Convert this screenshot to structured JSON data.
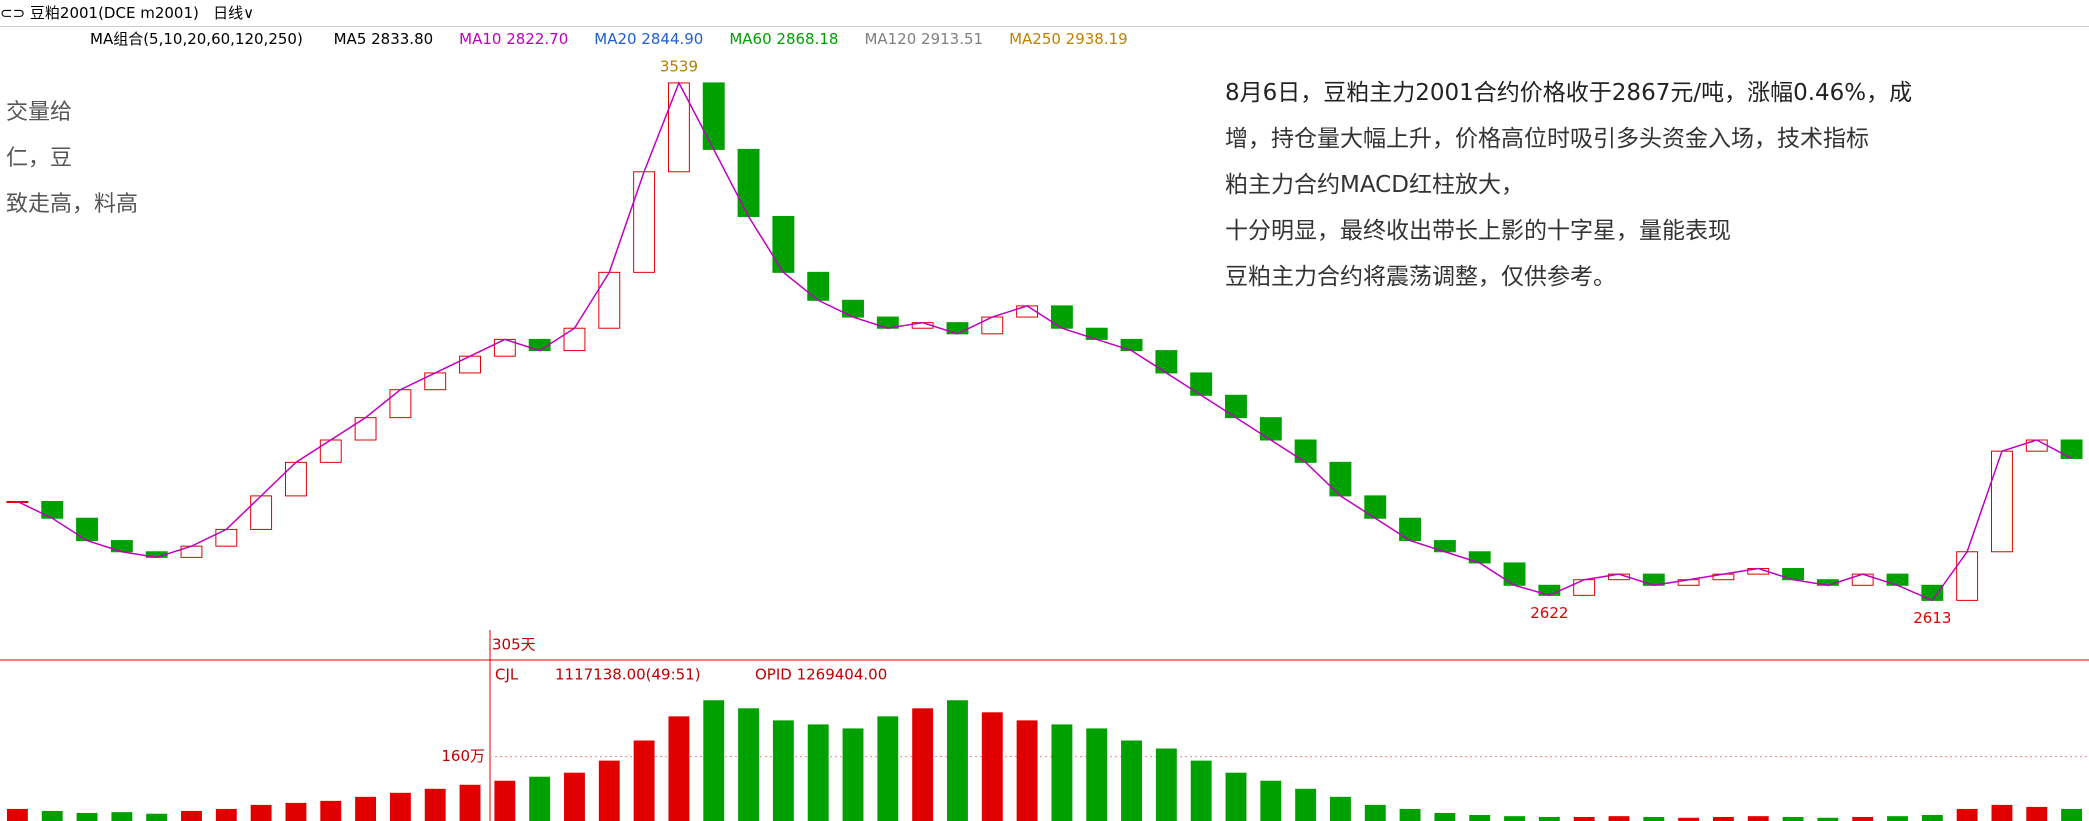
{
  "toolbar": {
    "symbol": "豆粕2001(DCE m2001)",
    "period": "日线"
  },
  "ma_bar": {
    "group": "MA组合(5,10,20,60,120,250)",
    "items": [
      {
        "label": "MA5 2833.80",
        "color": "#000000"
      },
      {
        "label": "MA10 2822.70",
        "color": "#c000c0"
      },
      {
        "label": "MA20 2844.90",
        "color": "#2060d0"
      },
      {
        "label": "MA60 2868.18",
        "color": "#00a000"
      },
      {
        "label": "MA120 2913.51",
        "color": "#808080"
      },
      {
        "label": "MA250 2938.19",
        "color": "#c08000"
      }
    ]
  },
  "commentary": {
    "lines": [
      "8月6日，豆粕主力2001合约价格收于2867元/吨，涨幅0.46%，成",
      "增，持仓量大幅上升，价格高位时吸引多头资金入场，技术指标",
      "粕主力合约MACD红柱放大，",
      "十分明显，最终收出带长上影的十字星，量能表现",
      "豆粕主力合约将震荡调整，仅供参考。"
    ]
  },
  "left_note": {
    "lines": [
      "交量给",
      "仁，豆",
      "致走高，料高"
    ]
  },
  "price_panel": {
    "ylim": [
      2560,
      3580
    ],
    "closes": [
      2790,
      2760,
      2720,
      2700,
      2690,
      2710,
      2740,
      2800,
      2860,
      2900,
      2940,
      2990,
      3020,
      3050,
      3080,
      3060,
      3100,
      3200,
      3380,
      3539,
      3420,
      3300,
      3200,
      3150,
      3120,
      3100,
      3110,
      3090,
      3120,
      3140,
      3100,
      3080,
      3060,
      3020,
      2980,
      2940,
      2900,
      2860,
      2800,
      2760,
      2720,
      2700,
      2680,
      2640,
      2622,
      2650,
      2660,
      2640,
      2650,
      2660,
      2670,
      2650,
      2640,
      2660,
      2640,
      2613,
      2700,
      2880,
      2900,
      2867
    ],
    "marked": [
      3539,
      2622,
      2613
    ]
  },
  "volume_panel": {
    "days": "305天",
    "indicator": "CJL",
    "cjl": "1117138.00(49:51)",
    "opid": "OPID 1269404.00",
    "yticks": [
      {
        "value": 160,
        "label": "160万"
      }
    ],
    "ylim": [
      0,
      400
    ],
    "values": [
      30,
      25,
      20,
      22,
      18,
      25,
      30,
      40,
      45,
      50,
      60,
      70,
      80,
      90,
      100,
      110,
      120,
      150,
      200,
      260,
      300,
      280,
      250,
      240,
      230,
      260,
      280,
      300,
      270,
      250,
      240,
      230,
      200,
      180,
      150,
      120,
      100,
      80,
      60,
      40,
      30,
      20,
      15,
      12,
      10,
      10,
      12,
      10,
      8,
      10,
      12,
      10,
      8,
      10,
      12,
      15,
      30,
      40,
      35,
      30
    ]
  }
}
